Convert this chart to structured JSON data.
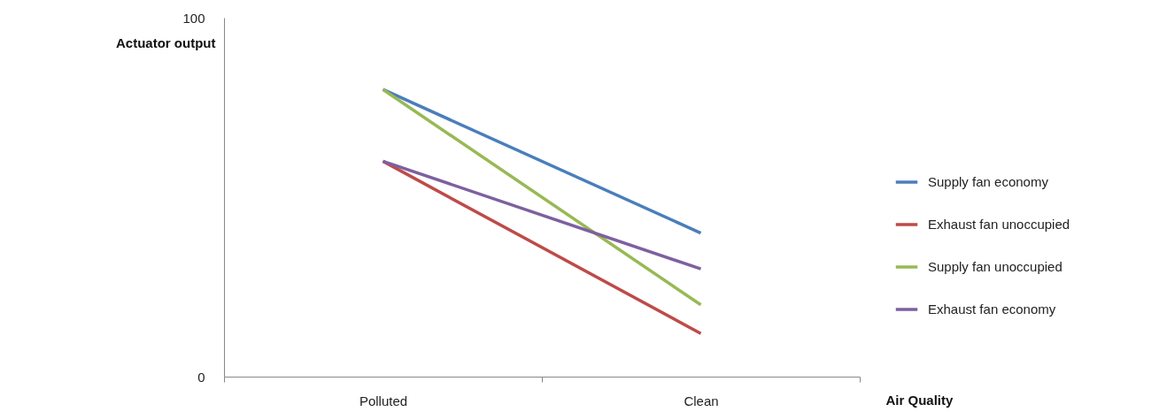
{
  "chart_data": {
    "type": "line",
    "xlabel": "Air Quality",
    "ylabel": "Actuator output",
    "categories": [
      "Polluted",
      "Clean"
    ],
    "ylim": [
      0,
      100
    ],
    "yticks": [
      0,
      100
    ],
    "legend": "right",
    "marker": "none",
    "series": [
      {
        "name": "Supply fan economy",
        "color": "#4a7ebb",
        "values": [
          80,
          40
        ]
      },
      {
        "name": "Exhaust fan unoccupied",
        "color": "#be4b48",
        "values": [
          60,
          12
        ]
      },
      {
        "name": "Supply fan unoccupied",
        "color": "#98b954",
        "values": [
          80,
          20
        ]
      },
      {
        "name": "Exhaust fan economy",
        "color": "#7d60a0",
        "values": [
          60,
          30
        ]
      }
    ]
  }
}
